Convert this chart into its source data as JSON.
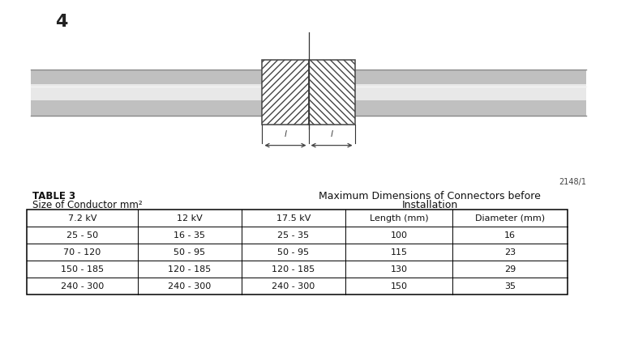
{
  "figure_number": "4",
  "reference_code": "2148/1",
  "table_title_line1": "TABLE 3",
  "table_title_line2": "Size of Conductor mm²",
  "col_headers": [
    "7.2 kV",
    "12 kV",
    "17.5 kV",
    "Length (mm)",
    "Diameter (mm)"
  ],
  "rows": [
    [
      "25 - 50",
      "16 - 35",
      "25 - 35",
      "100",
      "16"
    ],
    [
      "70 - 120",
      "50 - 95",
      "50 - 95",
      "115",
      "23"
    ],
    [
      "150 - 185",
      "120 - 185",
      "120 - 185",
      "130",
      "29"
    ],
    [
      "240 - 300",
      "240 - 300",
      "240 - 300",
      "150",
      "35"
    ]
  ],
  "bg_color": "#ffffff"
}
